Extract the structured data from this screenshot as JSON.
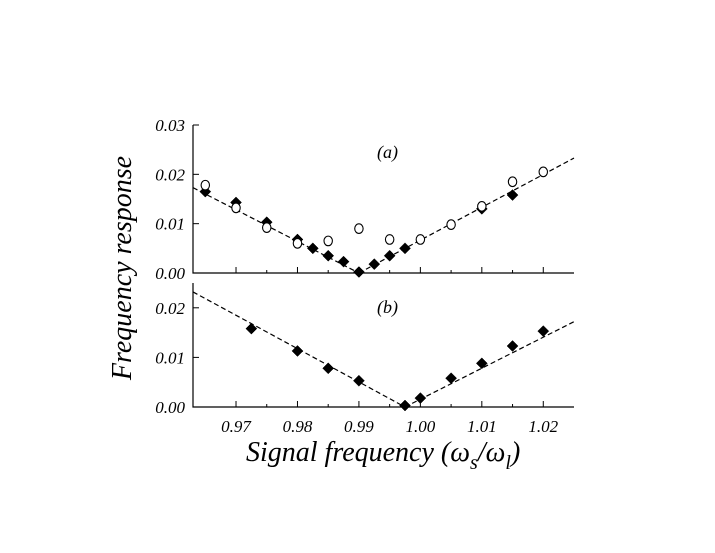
{
  "chart_data": [
    {
      "type": "scatter",
      "panel": "a",
      "panel_label": "(a)",
      "xlim": [
        0.963,
        1.025
      ],
      "ylim": [
        0.0,
        0.03
      ],
      "yticks": [
        0.0,
        0.01,
        0.02,
        0.03
      ],
      "ytick_labels": [
        "0.00",
        "0.01",
        "0.02",
        "0.03"
      ],
      "series": [
        {
          "name": "filled-diamonds",
          "marker": "filled-diamond",
          "x": [
            0.965,
            0.97,
            0.975,
            0.98,
            0.9825,
            0.985,
            0.9875,
            0.99,
            0.9925,
            0.995,
            0.9975,
            1.01,
            1.015
          ],
          "y": [
            0.0165,
            0.0143,
            0.0103,
            0.0068,
            0.005,
            0.0035,
            0.0023,
            0.0002,
            0.0018,
            0.0035,
            0.005,
            0.013,
            0.0158
          ]
        },
        {
          "name": "open-circles",
          "marker": "open-circle",
          "x": [
            0.965,
            0.97,
            0.975,
            0.98,
            0.985,
            0.99,
            0.995,
            1.0,
            1.005,
            1.01,
            1.015,
            1.02
          ],
          "y": [
            0.0178,
            0.0132,
            0.0092,
            0.006,
            0.0065,
            0.009,
            0.0068,
            0.0068,
            0.0098,
            0.0135,
            0.0185,
            0.0205
          ],
          "error": [
            0.001,
            0.001,
            0.001,
            0.001,
            0.001,
            0.001,
            0.001,
            0.001,
            0.001,
            0.001,
            0.001,
            0.001
          ]
        }
      ],
      "fit_lines": [
        {
          "x": [
            0.963,
            0.99
          ],
          "y": [
            0.0173,
            0.0
          ]
        },
        {
          "x": [
            0.99,
            1.025
          ],
          "y": [
            0.0,
            0.0233
          ]
        }
      ]
    },
    {
      "type": "scatter",
      "panel": "b",
      "panel_label": "(b)",
      "xlim": [
        0.963,
        1.025
      ],
      "ylim": [
        0.0,
        0.025
      ],
      "yticks": [
        0.0,
        0.01,
        0.02
      ],
      "ytick_labels": [
        "0.00",
        "0.01",
        "0.02"
      ],
      "xticks": [
        0.97,
        0.98,
        0.99,
        1.0,
        1.01,
        1.02
      ],
      "xtick_labels": [
        "0.97",
        "0.98",
        "0.99",
        "1.00",
        "1.01",
        "1.02"
      ],
      "series": [
        {
          "name": "filled-diamonds",
          "marker": "filled-diamond",
          "x": [
            0.9725,
            0.98,
            0.985,
            0.99,
            0.9975,
            1.0,
            1.005,
            1.01,
            1.015,
            1.02
          ],
          "y": [
            0.0158,
            0.0113,
            0.0078,
            0.0053,
            0.0003,
            0.0018,
            0.0058,
            0.0088,
            0.0123,
            0.0153
          ]
        }
      ],
      "fit_lines": [
        {
          "x": [
            0.963,
            0.9975
          ],
          "y": [
            0.0232,
            0.0
          ]
        },
        {
          "x": [
            0.9975,
            1.025
          ],
          "y": [
            0.0,
            0.0172
          ]
        }
      ]
    }
  ],
  "ylabel": "Frequency response",
  "xlabel_main": "Signal frequency (",
  "xlabel_omega": "ω",
  "xlabel_sub_s": "s",
  "xlabel_slash": "/",
  "xlabel_sub_l": "l",
  "xlabel_close": ")"
}
